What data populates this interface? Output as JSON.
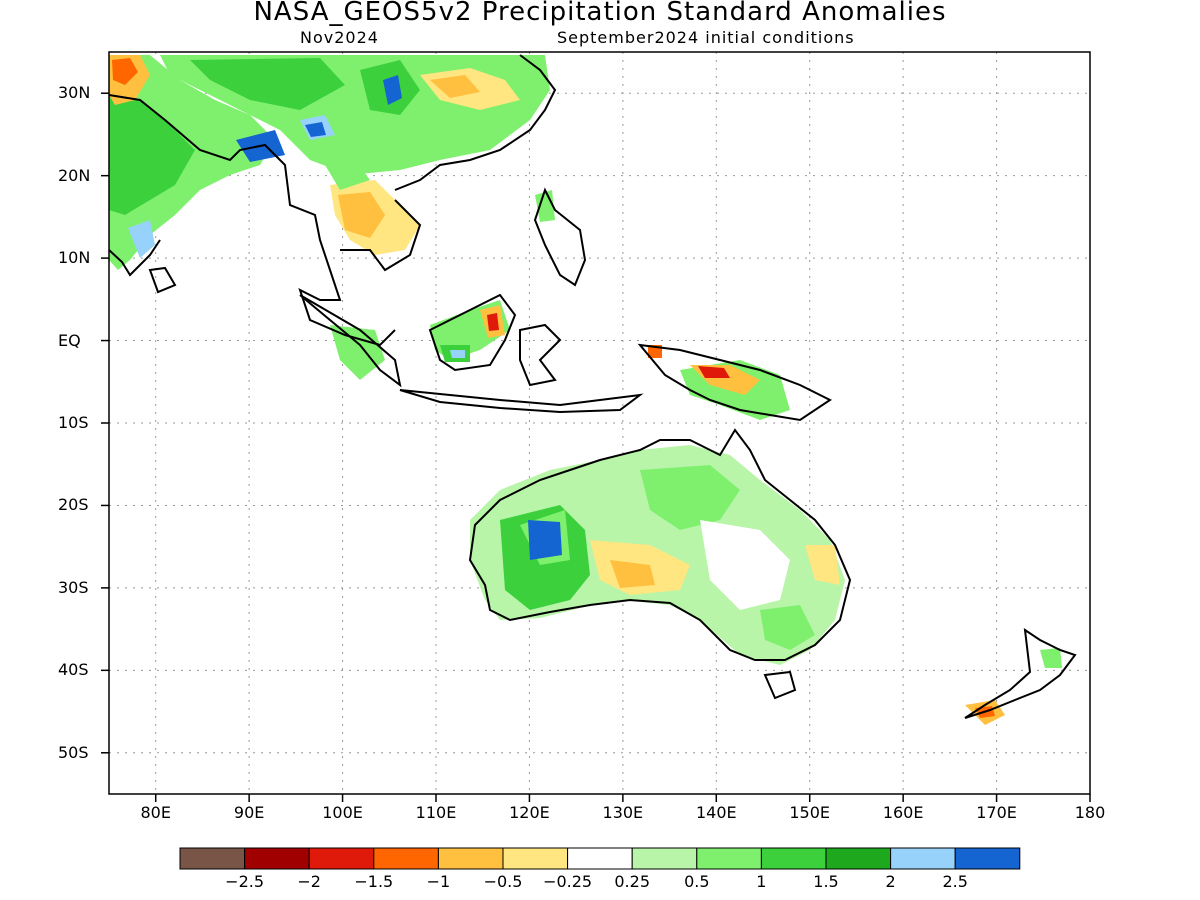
{
  "title": "NASA_GEOS5v2 Precipitation Standard Anomalies",
  "subtitle_left": "Nov2024",
  "subtitle_right": "September2024 initial conditions",
  "lat_labels": [
    "30N",
    "20N",
    "10N",
    "EQ",
    "10S",
    "20S",
    "30S",
    "40S",
    "50S"
  ],
  "lat_values": [
    30,
    20,
    10,
    0,
    -10,
    -20,
    -30,
    -40,
    -50
  ],
  "lon_labels": [
    "80E",
    "90E",
    "100E",
    "110E",
    "120E",
    "130E",
    "140E",
    "150E",
    "160E",
    "170E",
    "180"
  ],
  "lon_values": [
    80,
    90,
    100,
    110,
    120,
    130,
    140,
    150,
    160,
    170,
    180
  ],
  "colorbar": {
    "colors": [
      "#795548",
      "#a00000",
      "#e01a0a",
      "#ff6600",
      "#ffbf3f",
      "#ffe680",
      "#ffffff",
      "#b8f5a8",
      "#7ff06e",
      "#3cd03c",
      "#1ea81e",
      "#96d2fa",
      "#1464d2"
    ],
    "tick_labels": [
      "-2.5",
      "-2",
      "-1.5",
      "-1",
      "-0.5",
      "-0.25",
      "0.25",
      "0.5",
      "1",
      "1.5",
      "2",
      "2.5"
    ]
  }
}
